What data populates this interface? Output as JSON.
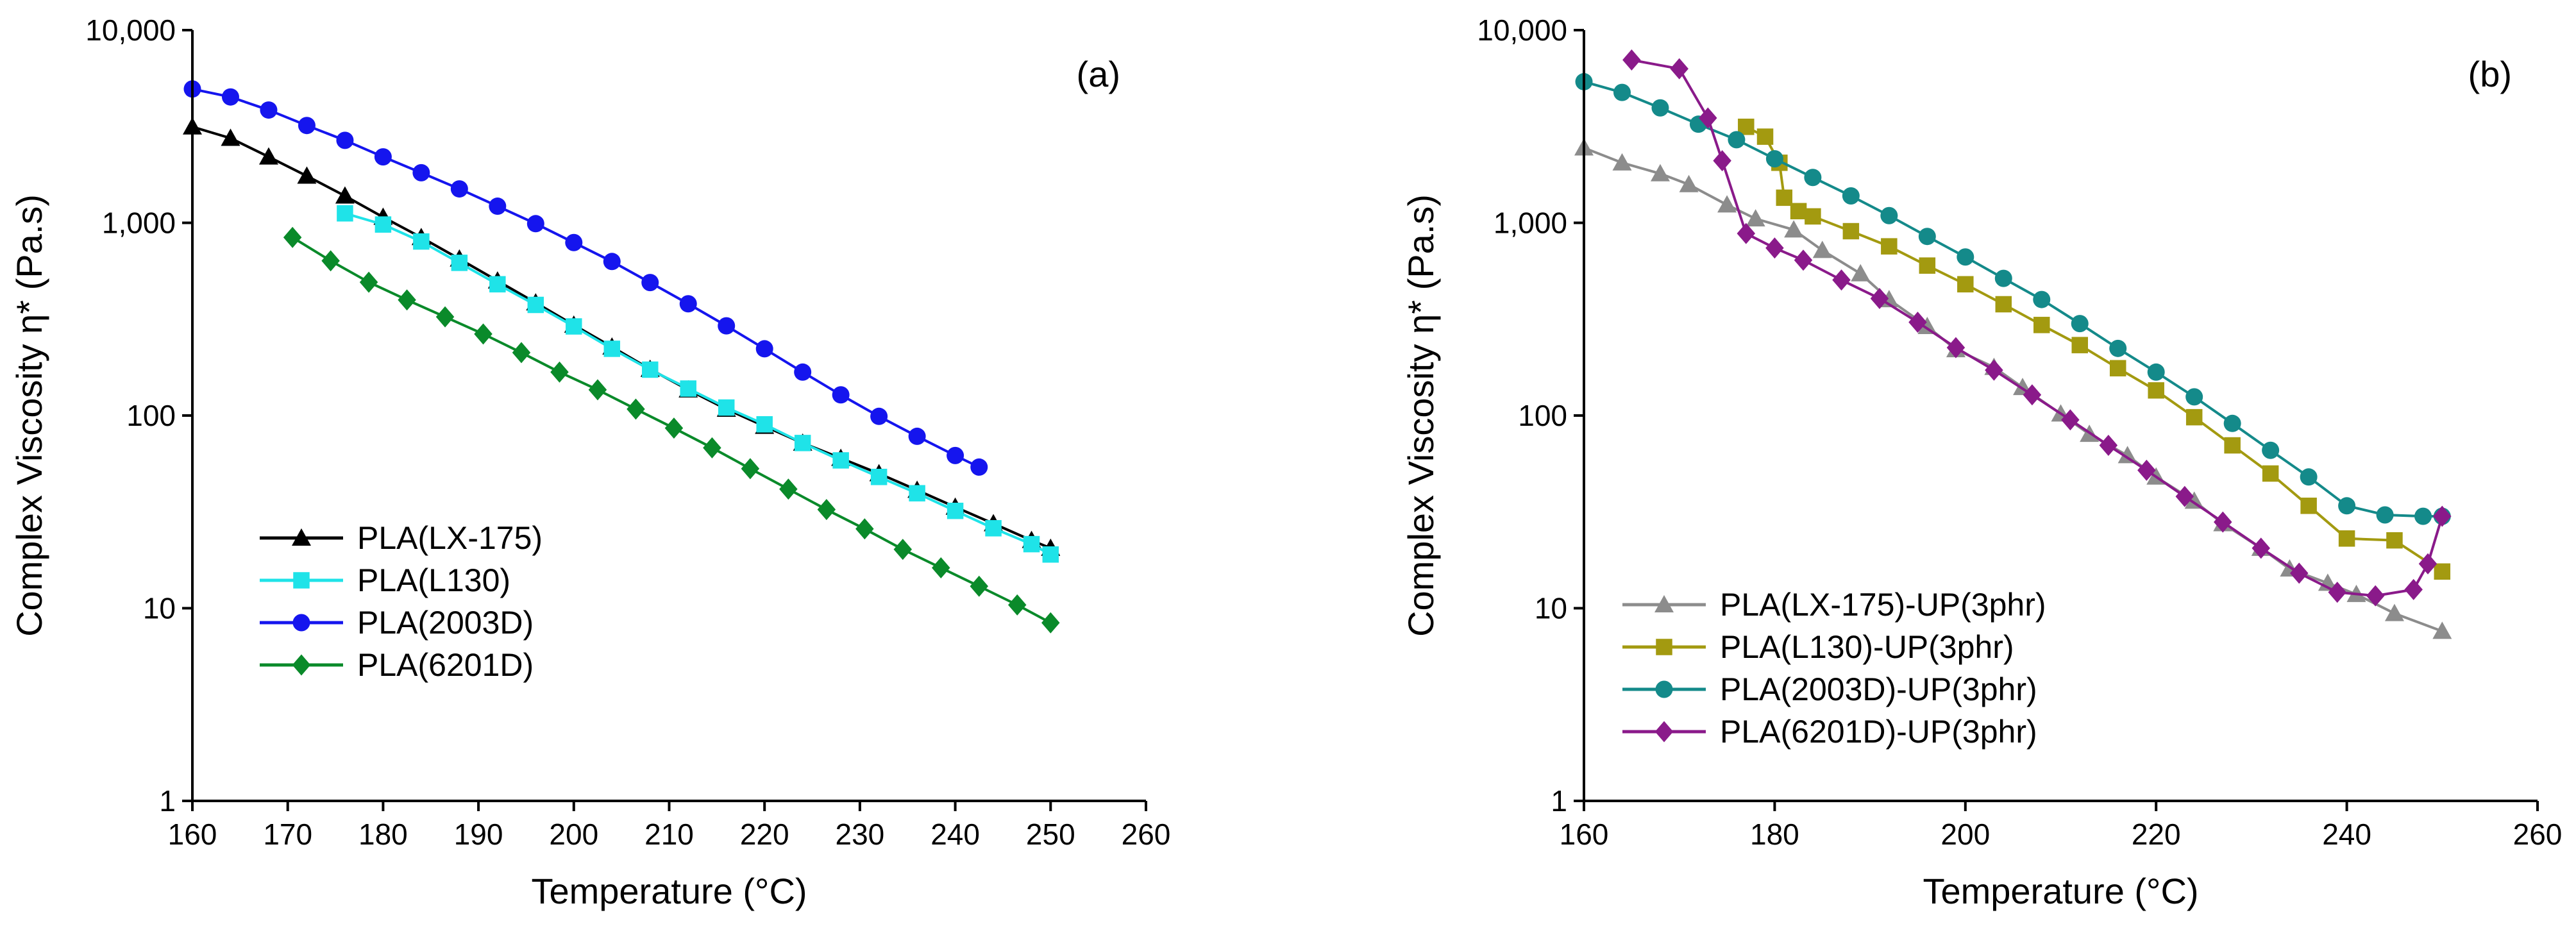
{
  "chart_data": [
    {
      "type": "line",
      "panel_label": "(a)",
      "xlabel": "Temperature (°C)",
      "ylabel": "Complex Viscosity η* (Pa.s)",
      "yscale": "log",
      "xlim": [
        160,
        260
      ],
      "ylim": [
        1,
        10000
      ],
      "xticks": [
        160,
        170,
        180,
        190,
        200,
        210,
        220,
        230,
        240,
        250,
        260
      ],
      "yticks": [
        1,
        10,
        100,
        1000,
        10000
      ],
      "ytick_labels": [
        "1",
        "10",
        "100",
        "1,000",
        "10,000"
      ],
      "legend_position": "lower-left",
      "series": [
        {
          "name": "PLA(LX-175)",
          "color": "#000000",
          "marker": "triangle",
          "x": [
            160,
            164,
            168,
            172,
            176,
            180,
            184,
            188,
            192,
            196,
            200,
            204,
            208,
            212,
            216,
            220,
            224,
            228,
            232,
            236,
            240,
            244,
            248,
            250
          ],
          "y": [
            3150,
            2750,
            2200,
            1750,
            1380,
            1070,
            840,
            650,
            500,
            385,
            295,
            227,
            174,
            136,
            108,
            88,
            72,
            60,
            50,
            41,
            33.5,
            27.5,
            22.5,
            20.5
          ]
        },
        {
          "name": "PLA(L130)",
          "color": "#1fe3e8",
          "marker": "square",
          "x": [
            176,
            180,
            184,
            188,
            192,
            196,
            200,
            204,
            208,
            212,
            216,
            220,
            224,
            228,
            232,
            236,
            240,
            244,
            248,
            250
          ],
          "y": [
            1120,
            980,
            800,
            620,
            480,
            375,
            290,
            222,
            173,
            138,
            110,
            90,
            72,
            58.5,
            48,
            39.5,
            32,
            26,
            21.5,
            19
          ]
        },
        {
          "name": "PLA(2003D)",
          "color": "#1515ee",
          "marker": "circle",
          "x": [
            160,
            164,
            168,
            172,
            176,
            180,
            184,
            188,
            192,
            196,
            200,
            204,
            208,
            212,
            216,
            220,
            224,
            228,
            232,
            236,
            240,
            242.5
          ],
          "y": [
            4950,
            4500,
            3850,
            3200,
            2680,
            2200,
            1820,
            1500,
            1220,
            990,
            790,
            630,
            490,
            380,
            292,
            222,
            168,
            128,
            99,
            78,
            62,
            54
          ]
        },
        {
          "name": "PLA(6201D)",
          "color": "#0a8a2a",
          "marker": "diamond",
          "x": [
            170.5,
            174.5,
            178.5,
            182.5,
            186.5,
            190.5,
            194.5,
            198.5,
            202.5,
            206.5,
            210.5,
            214.5,
            218.5,
            222.5,
            226.5,
            230.5,
            234.5,
            238.5,
            242.5,
            246.5,
            250
          ],
          "y": [
            840,
            635,
            492,
            398,
            325,
            265,
            212,
            168,
            136,
            108,
            86,
            68,
            53,
            41.5,
            32.5,
            25.8,
            20.2,
            16.2,
            13,
            10.4,
            8.4
          ]
        }
      ]
    },
    {
      "type": "line",
      "panel_label": "(b)",
      "xlabel": "Temperature (°C)",
      "ylabel": "Complex Viscosity η* (Pa.s)",
      "yscale": "log",
      "xlim": [
        160,
        260
      ],
      "ylim": [
        1,
        10000
      ],
      "xticks": [
        160,
        180,
        200,
        220,
        240,
        260
      ],
      "yticks": [
        1,
        10,
        100,
        1000,
        10000
      ],
      "ytick_labels": [
        "1",
        "10",
        "100",
        "1,000",
        "10,000"
      ],
      "legend_position": "lower-left",
      "series": [
        {
          "name": "PLA(LX-175)-UP(3phr)",
          "color": "#8c8c8c",
          "marker": "triangle",
          "x": [
            160,
            164,
            168,
            171,
            175,
            178,
            182,
            185,
            189,
            192,
            196,
            199,
            203,
            206,
            210,
            213,
            217,
            220,
            224,
            227,
            231,
            234,
            238,
            241,
            245,
            250
          ],
          "y": [
            2450,
            2050,
            1800,
            1580,
            1240,
            1050,
            920,
            720,
            545,
            400,
            290,
            220,
            178,
            140,
            102,
            80,
            62,
            48,
            36,
            27.5,
            20.5,
            16,
            13.5,
            11.8,
            9.4,
            7.6
          ]
        },
        {
          "name": "PLA(L130)-UP(3phr)",
          "color": "#a39a10",
          "marker": "square",
          "x": [
            177,
            179,
            180.5,
            181,
            182.5,
            184,
            188,
            192,
            196,
            200,
            204,
            208,
            212,
            216,
            220,
            224,
            228,
            232,
            236,
            240,
            245,
            250
          ],
          "y": [
            3150,
            2800,
            2050,
            1350,
            1150,
            1080,
            905,
            755,
            600,
            480,
            378,
            295,
            232,
            176,
            135,
            98,
            70,
            50,
            34,
            23,
            22.5,
            15.5
          ]
        },
        {
          "name": "PLA(2003D)-UP(3phr)",
          "color": "#148a8a",
          "marker": "circle",
          "x": [
            160,
            164,
            168,
            172,
            176,
            180,
            184,
            188,
            192,
            196,
            200,
            204,
            208,
            212,
            216,
            220,
            224,
            228,
            232,
            236,
            240,
            244,
            248,
            250
          ],
          "y": [
            5400,
            4750,
            3950,
            3250,
            2700,
            2150,
            1720,
            1380,
            1090,
            850,
            665,
            515,
            400,
            300,
            223,
            168,
            125,
            91,
            66,
            48,
            34,
            30.5,
            30,
            30
          ]
        },
        {
          "name": "PLA(6201D)-UP(3phr)",
          "color": "#8a1a8a",
          "marker": "diamond",
          "x": [
            165,
            170,
            173,
            174.5,
            177,
            180,
            183,
            187,
            191,
            195,
            199,
            203,
            207,
            211,
            215,
            219,
            223,
            227,
            231,
            235,
            239,
            243,
            247,
            248.5,
            250
          ],
          "y": [
            7000,
            6300,
            3500,
            2100,
            880,
            740,
            640,
            505,
            405,
            305,
            225,
            172,
            128,
            95,
            70,
            52,
            38,
            28,
            20.5,
            15.2,
            12.1,
            11.6,
            12.5,
            17,
            30
          ]
        }
      ]
    }
  ]
}
